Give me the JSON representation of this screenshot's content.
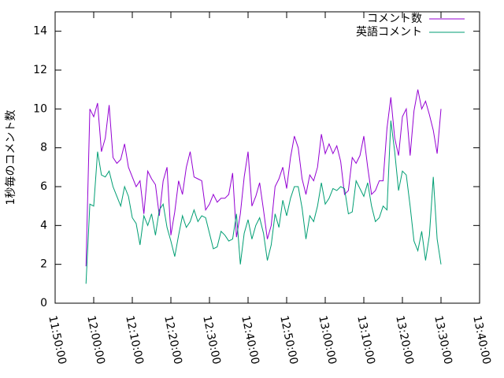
{
  "chart_data": {
    "type": "line",
    "ylabel": "1秒毎のコメント数",
    "xlim": [
      "11:50:00",
      "13:40:00"
    ],
    "xticks": [
      "11:50:00",
      "12:00:00",
      "12:10:00",
      "12:20:00",
      "12:30:00",
      "12:40:00",
      "12:50:00",
      "13:00:00",
      "13:10:00",
      "13:20:00",
      "13:30:00",
      "13:40:00"
    ],
    "ylim": [
      0,
      15
    ],
    "yticks": [
      0,
      2,
      4,
      6,
      8,
      10,
      12,
      14
    ],
    "legend": "top-right",
    "x": [
      "11:58:00",
      "11:59:00",
      "12:00:00",
      "12:01:00",
      "12:02:00",
      "12:03:00",
      "12:04:00",
      "12:05:00",
      "12:06:00",
      "12:07:00",
      "12:08:00",
      "12:09:00",
      "12:10:00",
      "12:11:00",
      "12:12:00",
      "12:13:00",
      "12:14:00",
      "12:15:00",
      "12:16:00",
      "12:17:00",
      "12:18:00",
      "12:19:00",
      "12:20:00",
      "12:21:00",
      "12:22:00",
      "12:23:00",
      "12:24:00",
      "12:25:00",
      "12:26:00",
      "12:27:00",
      "12:28:00",
      "12:29:00",
      "12:30:00",
      "12:31:00",
      "12:32:00",
      "12:33:00",
      "12:34:00",
      "12:35:00",
      "12:36:00",
      "12:37:00",
      "12:38:00",
      "12:39:00",
      "12:40:00",
      "12:41:00",
      "12:42:00",
      "12:43:00",
      "12:44:00",
      "12:45:00",
      "12:46:00",
      "12:47:00",
      "12:48:00",
      "12:49:00",
      "12:50:00",
      "12:51:00",
      "12:52:00",
      "12:53:00",
      "12:54:00",
      "12:55:00",
      "12:56:00",
      "12:57:00",
      "12:58:00",
      "12:59:00",
      "13:00:00",
      "13:01:00",
      "13:02:00",
      "13:03:00",
      "13:04:00",
      "13:05:00",
      "13:06:00",
      "13:07:00",
      "13:08:00",
      "13:09:00",
      "13:10:00",
      "13:11:00",
      "13:12:00",
      "13:13:00",
      "13:14:00",
      "13:15:00",
      "13:16:00",
      "13:17:00",
      "13:18:00",
      "13:19:00",
      "13:20:00",
      "13:21:00",
      "13:22:00",
      "13:23:00",
      "13:24:00",
      "13:25:00",
      "13:26:00",
      "13:27:00",
      "13:28:00",
      "13:29:00",
      "13:30:00"
    ],
    "series": [
      {
        "name": "コメント数",
        "color": "#9400d3",
        "values": [
          1.9,
          10.0,
          9.6,
          10.3,
          7.8,
          8.5,
          10.2,
          7.5,
          7.2,
          7.4,
          8.2,
          7.0,
          6.5,
          6.0,
          6.3,
          4.6,
          6.8,
          6.4,
          6.1,
          4.5,
          6.3,
          7.0,
          3.5,
          4.7,
          6.3,
          5.6,
          7.0,
          7.8,
          6.5,
          6.4,
          6.3,
          4.8,
          5.1,
          5.6,
          5.2,
          5.4,
          5.4,
          5.6,
          6.7,
          3.4,
          4.6,
          6.5,
          7.8,
          5.0,
          5.5,
          6.2,
          4.8,
          3.3,
          4.0,
          6.0,
          6.4,
          7.0,
          5.9,
          7.5,
          8.6,
          8.0,
          6.4,
          5.6,
          6.6,
          6.3,
          7.0,
          8.7,
          7.7,
          8.2,
          7.7,
          8.1,
          7.3,
          5.6,
          5.8,
          7.5,
          7.2,
          7.6,
          8.6,
          7.0,
          5.6,
          5.8,
          6.3,
          6.3,
          9.0,
          10.6,
          8.5,
          7.6,
          9.6,
          10.0,
          7.6,
          9.9,
          11.0,
          10.0,
          10.4,
          9.7,
          8.9,
          7.7,
          10.0
        ]
      },
      {
        "name": "英語コメント",
        "color": "#009e73",
        "values": [
          1.0,
          5.1,
          5.0,
          7.8,
          6.6,
          6.5,
          6.8,
          6.0,
          5.5,
          5.0,
          6.0,
          5.5,
          4.4,
          4.1,
          3.0,
          4.5,
          4.0,
          4.6,
          3.5,
          4.8,
          5.1,
          3.9,
          3.2,
          2.4,
          3.5,
          4.5,
          3.9,
          4.2,
          4.8,
          4.2,
          4.5,
          4.4,
          3.6,
          2.8,
          2.9,
          3.7,
          3.5,
          3.2,
          3.3,
          4.6,
          2.0,
          3.6,
          4.3,
          3.3,
          4.0,
          4.4,
          3.6,
          2.2,
          3.0,
          4.6,
          3.9,
          5.3,
          4.5,
          5.4,
          6.0,
          6.0,
          4.9,
          3.3,
          4.5,
          4.2,
          5.0,
          6.2,
          5.1,
          5.4,
          5.9,
          5.8,
          6.0,
          5.9,
          4.6,
          4.7,
          6.3,
          5.9,
          5.5,
          6.2,
          5.0,
          4.2,
          4.4,
          5.0,
          4.8,
          9.4,
          7.8,
          5.8,
          6.8,
          6.6,
          5.0,
          3.2,
          2.7,
          3.7,
          2.2,
          3.5,
          6.5,
          3.3,
          2.0
        ]
      }
    ]
  }
}
